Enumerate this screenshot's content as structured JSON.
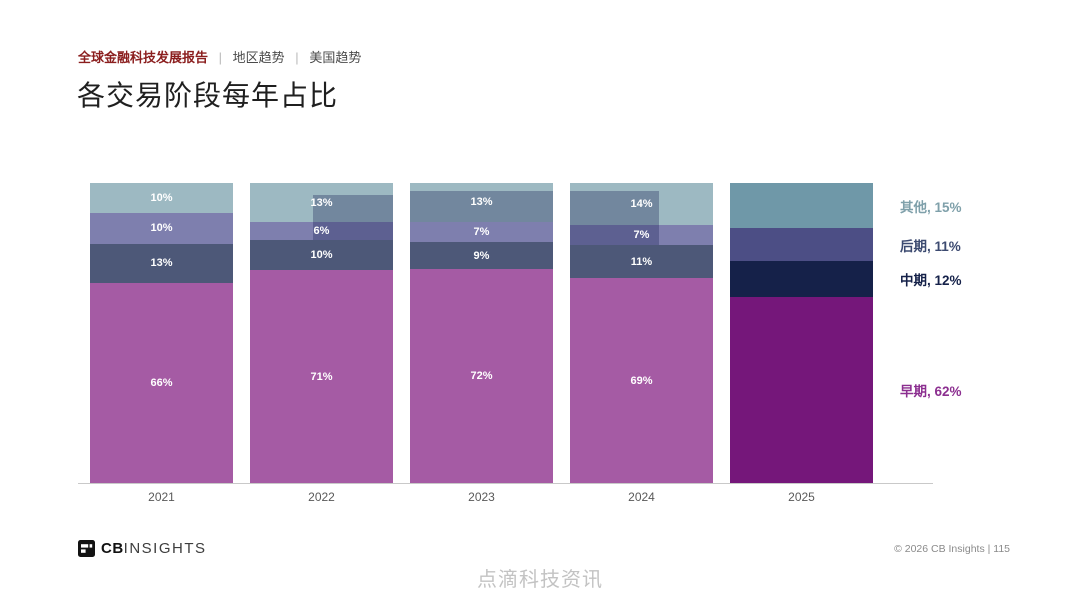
{
  "header": {
    "report_title": "全球金融科技发展报告",
    "separator": "|",
    "crumb_region": "地区趋势",
    "crumb_us": "美国趋势",
    "title": "各交易阶段每年占比"
  },
  "chart_data": {
    "type": "bar",
    "stacked": true,
    "title": "各交易阶段每年占比",
    "categories": [
      "2021",
      "2022",
      "2023",
      "2024",
      "2025"
    ],
    "series": [
      {
        "name": "早期",
        "values": [
          66,
          71,
          72,
          69,
          62
        ]
      },
      {
        "name": "中期",
        "values": [
          13,
          10,
          9,
          11,
          12
        ]
      },
      {
        "name": "后期",
        "values": [
          10,
          6,
          7,
          7,
          11
        ]
      },
      {
        "name": "其他",
        "values": [
          10,
          13,
          13,
          14,
          15
        ]
      }
    ],
    "unit": "%",
    "grid": false,
    "legend_position": "right",
    "data_labels_hidden_for": [
      "2025"
    ],
    "colors": {
      "早期": "#a55ba4",
      "中期": "#4d5878",
      "后期": "#7e7fae",
      "其他": "#9db9c2"
    },
    "colors_final_year": {
      "早期": "#75177a",
      "中期": "#152149",
      "后期": "#4c4e85",
      "其他": "#6f98a8"
    },
    "legend": [
      {
        "name": "其他",
        "value": "15%",
        "color": "#7fa0aa"
      },
      {
        "name": "后期",
        "value": "11%",
        "color": "#3c4a70"
      },
      {
        "name": "中期",
        "value": "12%",
        "color": "#152149"
      },
      {
        "name": "早期",
        "value": "62%",
        "color": "#8c2f90"
      }
    ],
    "label_chips": [
      {
        "year": "2022",
        "series": "其他",
        "side": "right",
        "top_pct": 30
      },
      {
        "year": "2022",
        "series": "后期",
        "side": "right",
        "top_pct": 0
      },
      {
        "year": "2023",
        "series": "其他",
        "side": "full",
        "top_pct": 22
      },
      {
        "year": "2024",
        "series": "其他",
        "side": "left",
        "top_pct": 20
      },
      {
        "year": "2024",
        "series": "后期",
        "side": "left",
        "top_pct": 0
      }
    ]
  },
  "footer": {
    "logo_bold": "CB",
    "logo_light": "INSIGHTS",
    "copyright": "© 2026 CB Insights  |  115"
  },
  "watermark": "点滴科技资讯"
}
